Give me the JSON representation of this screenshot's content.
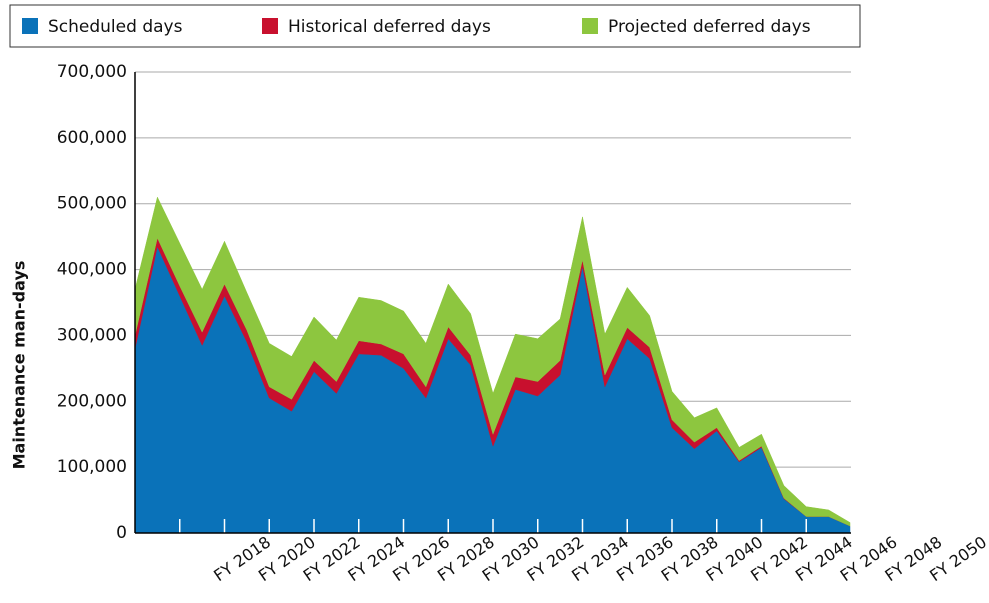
{
  "chart_data": {
    "type": "stacked_area",
    "y_label": "Maintenance man-days",
    "categories": [
      null,
      null,
      null,
      null,
      null,
      null,
      "FY 2018",
      null,
      "FY 2020",
      null,
      "FY 2022",
      null,
      "FY 2024",
      null,
      "FY 2026",
      null,
      "FY 2028",
      null,
      "FY 2030",
      null,
      "FY 2032",
      null,
      "FY 2034",
      null,
      "FY 2036",
      null,
      "FY 2038",
      null,
      "FY 2040",
      null,
      "FY 2042",
      null,
      "FY 2044",
      null,
      "FY 2046",
      null,
      "FY 2048",
      null,
      "FY 2050"
    ],
    "series": [
      {
        "name": "Scheduled days",
        "color": "#0a72b9",
        "values": [
          280000,
          435000,
          360000,
          285000,
          360000,
          290000,
          205000,
          185000,
          245000,
          212000,
          272000,
          270000,
          250000,
          205000,
          295000,
          255000,
          132000,
          218000,
          208000,
          240000,
          405000,
          222000,
          295000,
          265000,
          160000,
          128000,
          155000,
          108000,
          130000,
          52000,
          25000,
          25000,
          10000,
          null,
          null,
          null,
          null,
          null,
          null
        ]
      },
      {
        "name": "Historical deferred days",
        "color": "#c8102e",
        "values": [
          20000,
          13000,
          15000,
          20000,
          18000,
          18000,
          17000,
          18000,
          17000,
          18000,
          20000,
          17000,
          22000,
          17000,
          18000,
          15000,
          18000,
          19000,
          22000,
          22000,
          10000,
          18000,
          17000,
          17000,
          12000,
          10000,
          5000,
          2000,
          2000,
          1000,
          0,
          0,
          0,
          null,
          null,
          null,
          null,
          null,
          null
        ]
      },
      {
        "name": "Projected deferred days",
        "color": "#8dc63f",
        "values": [
          70000,
          62000,
          65000,
          65000,
          65000,
          57000,
          66000,
          65000,
          66000,
          63000,
          66000,
          66000,
          65000,
          66000,
          65000,
          63000,
          62000,
          65000,
          65000,
          63000,
          65000,
          62000,
          61000,
          48000,
          43000,
          37000,
          30000,
          20000,
          18000,
          19000,
          15000,
          10000,
          5000,
          null,
          null,
          null,
          null,
          null,
          null
        ]
      }
    ],
    "ylim": [
      0,
      700000
    ],
    "yticks": [
      0,
      {
        "value": 100000,
        "label": "100,000"
      },
      {
        "value": 200000,
        "label": "200,000"
      },
      {
        "value": 300000,
        "label": "300,000"
      },
      {
        "value": 400000,
        "label": "400,000"
      },
      {
        "value": 500000,
        "label": "500,000"
      },
      {
        "value": 600000,
        "label": "600,000"
      },
      {
        "value": 700000,
        "label": "700,000"
      }
    ],
    "grid": true,
    "legend": "top"
  }
}
